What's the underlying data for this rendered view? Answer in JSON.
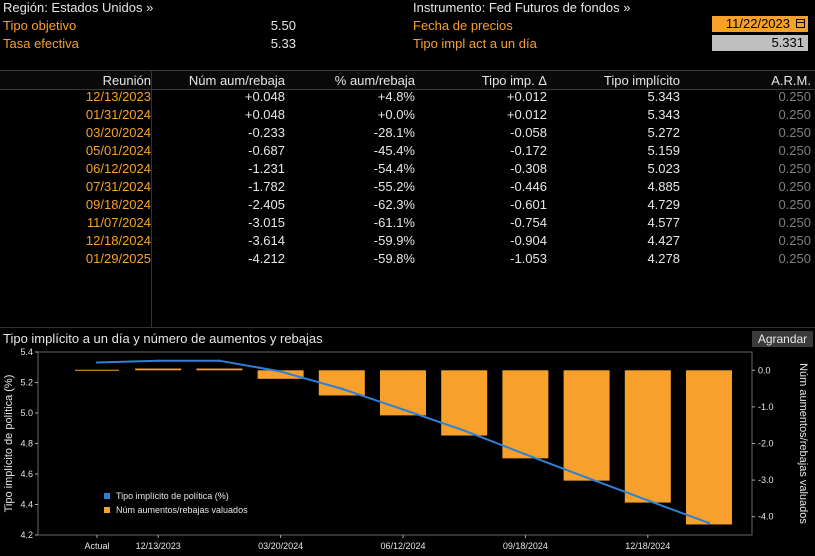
{
  "header": {
    "region_label": "Región: Estados Unidos »",
    "target_label": "Tipo objetivo",
    "target_value": "5.50",
    "effective_label": "Tasa efectiva",
    "effective_value": "5.33",
    "instrument_label": "Instrumento: Fed Futuros de fondos »",
    "price_date_label": "Fecha de precios",
    "price_date_value": "11/22/2023",
    "implied_label": "Tipo impl act a un día",
    "implied_value": "5.331",
    "calendar_icon": "calendar-icon"
  },
  "table": {
    "headers": [
      "Reunión",
      "Núm aum/rebaja",
      "% aum/rebaja",
      "Tipo imp. Δ",
      "Tipo implícito",
      "A.R.M."
    ],
    "rows": [
      [
        "12/13/2023",
        "+0.048",
        "+4.8%",
        "+0.012",
        "5.343",
        "0.250"
      ],
      [
        "01/31/2024",
        "+0.048",
        "+0.0%",
        "+0.012",
        "5.343",
        "0.250"
      ],
      [
        "03/20/2024",
        "-0.233",
        "-28.1%",
        "-0.058",
        "5.272",
        "0.250"
      ],
      [
        "05/01/2024",
        "-0.687",
        "-45.4%",
        "-0.172",
        "5.159",
        "0.250"
      ],
      [
        "06/12/2024",
        "-1.231",
        "-54.4%",
        "-0.308",
        "5.023",
        "0.250"
      ],
      [
        "07/31/2024",
        "-1.782",
        "-55.2%",
        "-0.446",
        "4.885",
        "0.250"
      ],
      [
        "09/18/2024",
        "-2.405",
        "-62.3%",
        "-0.601",
        "4.729",
        "0.250"
      ],
      [
        "11/07/2024",
        "-3.015",
        "-61.1%",
        "-0.754",
        "4.577",
        "0.250"
      ],
      [
        "12/18/2024",
        "-3.614",
        "-59.9%",
        "-0.904",
        "4.427",
        "0.250"
      ],
      [
        "01/29/2025",
        "-4.212",
        "-59.8%",
        "-1.053",
        "4.278",
        "0.250"
      ]
    ]
  },
  "chart_section": {
    "title": "Tipo implícito a un día y número de aumentos y rebajas",
    "expand_label": "Agrandar"
  },
  "chart_data": {
    "type": "bar",
    "categories": [
      "Actual",
      "12/13/2023",
      "01/31/2024",
      "03/20/2024",
      "05/01/2024",
      "06/12/2024",
      "07/31/2024",
      "09/18/2024",
      "11/07/2024",
      "12/18/2024",
      "01/29/2025"
    ],
    "x_tick_labels": [
      "Actual",
      "12/13/2023",
      "03/20/2024",
      "06/12/2024",
      "09/18/2024",
      "12/18/2024"
    ],
    "series": [
      {
        "name": "Tipo implícito de política (%)",
        "type": "line",
        "axis": "left",
        "color": "#2f7fd6",
        "values": [
          5.331,
          5.343,
          5.343,
          5.272,
          5.159,
          5.023,
          4.885,
          4.729,
          4.577,
          4.427,
          4.278
        ]
      },
      {
        "name": "Núm aumentos/rebajas valuados",
        "type": "bar",
        "axis": "right",
        "color": "#f7a12c",
        "values": [
          0,
          0.048,
          0.048,
          -0.233,
          -0.687,
          -1.231,
          -1.782,
          -2.405,
          -3.015,
          -3.614,
          -4.212
        ]
      }
    ],
    "ylabel": "Tipo implícito de política (%)",
    "y2label": "Núm aumentos/rebajas valuados",
    "ylim": [
      4.2,
      5.4
    ],
    "yticks": [
      "5.4",
      "5.2",
      "5.0",
      "4.8",
      "4.6",
      "4.4",
      "4.2"
    ],
    "y2lim": [
      -4.5,
      0.5
    ],
    "y2ticks": [
      "0.0",
      "-1.0",
      "-2.0",
      "-3.0",
      "-4.0"
    ],
    "legend_position": "bottom-left",
    "grid": false
  }
}
